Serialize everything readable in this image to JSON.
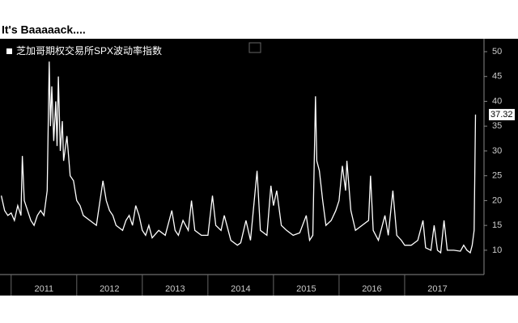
{
  "chart_data": {
    "type": "line",
    "title": "It's Baaaaack....",
    "x": [
      2010.85,
      2010.9,
      2010.95,
      2011.0,
      2011.05,
      2011.1,
      2011.15,
      2011.17,
      2011.2,
      2011.3,
      2011.35,
      2011.4,
      2011.45,
      2011.5,
      2011.55,
      2011.58,
      2011.6,
      2011.62,
      2011.65,
      2011.68,
      2011.7,
      2011.72,
      2011.75,
      2011.78,
      2011.8,
      2011.85,
      2011.9,
      2011.95,
      2012.0,
      2012.05,
      2012.1,
      2012.2,
      2012.3,
      2012.4,
      2012.45,
      2012.5,
      2012.55,
      2012.6,
      2012.7,
      2012.75,
      2012.8,
      2012.85,
      2012.9,
      2012.95,
      2013.0,
      2013.05,
      2013.1,
      2013.15,
      2013.25,
      2013.35,
      2013.45,
      2013.5,
      2013.55,
      2013.62,
      2013.7,
      2013.75,
      2013.8,
      2013.9,
      2014.0,
      2014.07,
      2014.12,
      2014.2,
      2014.25,
      2014.35,
      2014.45,
      2014.5,
      2014.58,
      2014.65,
      2014.75,
      2014.8,
      2014.9,
      2014.96,
      2015.0,
      2015.05,
      2015.12,
      2015.2,
      2015.3,
      2015.4,
      2015.5,
      2015.55,
      2015.6,
      2015.64,
      2015.66,
      2015.7,
      2015.75,
      2015.8,
      2015.88,
      2015.95,
      2016.0,
      2016.05,
      2016.1,
      2016.12,
      2016.18,
      2016.25,
      2016.35,
      2016.45,
      2016.48,
      2016.52,
      2016.6,
      2016.7,
      2016.75,
      2016.82,
      2016.88,
      2016.95,
      2017.0,
      2017.1,
      2017.2,
      2017.28,
      2017.32,
      2017.4,
      2017.45,
      2017.5,
      2017.55,
      2017.6,
      2017.65,
      2017.75,
      2017.85,
      2017.9,
      2017.95,
      2018.0,
      2018.03,
      2018.05,
      2018.06,
      2018.08
    ],
    "series": [
      {
        "name": "芝加哥期权交易所SPX波动率指数",
        "color": "#ffffff",
        "values": [
          21,
          18,
          17,
          17.5,
          16,
          19,
          17,
          29,
          20,
          16,
          15,
          17,
          18,
          17,
          22,
          48,
          35,
          43,
          32,
          40,
          31,
          45,
          30,
          36,
          28,
          33,
          25,
          24,
          20,
          19,
          17,
          16,
          15,
          24,
          20,
          18,
          17,
          15,
          14,
          16,
          17,
          15,
          19,
          17,
          14,
          13,
          15,
          12.5,
          14,
          13,
          18,
          14,
          13,
          16,
          14,
          20,
          14,
          13,
          13,
          21,
          15,
          14,
          17,
          12,
          11,
          11.5,
          16,
          12,
          26,
          14,
          13,
          23,
          19,
          22,
          15,
          14,
          13,
          13.5,
          17,
          12,
          13,
          41,
          28,
          26,
          20,
          15,
          16,
          18,
          20,
          27,
          22,
          28,
          18,
          14,
          15,
          16,
          25,
          14,
          12,
          17,
          13,
          22,
          13,
          12,
          11,
          11,
          12,
          16,
          10.5,
          10,
          15,
          10,
          9.5,
          16,
          10,
          10,
          9.8,
          11,
          10,
          9.5,
          11,
          13,
          14,
          37.32
        ]
      }
    ],
    "ylim": [
      5.1,
      52.6
    ],
    "yticks": [
      10,
      15,
      20,
      25,
      30,
      35,
      40,
      45,
      50
    ],
    "xlim": [
      2010.83,
      2018.21
    ],
    "xticks": [
      2011,
      2012,
      2013,
      2014,
      2015,
      2016,
      2017
    ]
  }
}
